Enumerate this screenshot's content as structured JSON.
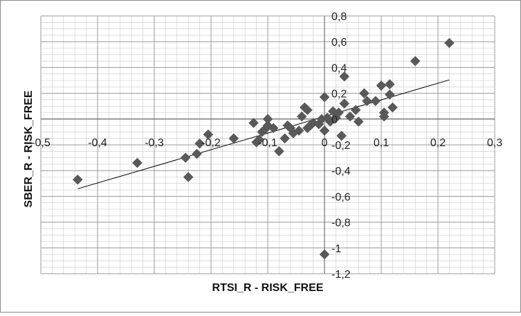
{
  "chart_data": {
    "type": "scatter",
    "title": "",
    "xlabel": "RTSI_R - RISK_FREE",
    "ylabel": "SBER_R - RISK_FREE",
    "xlim": [
      -0.5,
      0.3
    ],
    "ylim": [
      -1.2,
      0.8
    ],
    "x_ticks": [
      "-0,5",
      "-0,4",
      "-0,3",
      "-0,2",
      "-0,1",
      "0",
      "0,1",
      "0,2",
      "0,3"
    ],
    "y_ticks": [
      "0,8",
      "0,6",
      "0,4",
      "0,2",
      "0",
      "-0,2",
      "-0,4",
      "-0,6",
      "-0,8",
      "-1",
      "-1,2"
    ],
    "x_tick_values": [
      -0.5,
      -0.4,
      -0.3,
      -0.2,
      -0.1,
      0,
      0.1,
      0.2,
      0.3
    ],
    "y_tick_values": [
      0.8,
      0.6,
      0.4,
      0.2,
      0,
      -0.2,
      -0.4,
      -0.6,
      -0.8,
      -1,
      -1.2
    ],
    "grid": true,
    "legend": "none",
    "marker": "diamond",
    "marker_color": "#595959",
    "trendline": {
      "type": "linear",
      "slope": 1.29,
      "intercept": 0.02,
      "x_range": [
        -0.435,
        0.22
      ],
      "color": "#000000"
    },
    "points": [
      [
        -0.435,
        -0.47
      ],
      [
        -0.33,
        -0.34
      ],
      [
        -0.245,
        -0.3
      ],
      [
        -0.24,
        -0.45
      ],
      [
        -0.225,
        -0.27
      ],
      [
        -0.22,
        -0.19
      ],
      [
        -0.205,
        -0.12
      ],
      [
        -0.16,
        -0.15
      ],
      [
        -0.125,
        -0.03
      ],
      [
        -0.12,
        -0.18
      ],
      [
        -0.115,
        -0.16
      ],
      [
        -0.11,
        -0.1
      ],
      [
        -0.105,
        -0.08
      ],
      [
        -0.1,
        -0.05
      ],
      [
        -0.1,
        0.0
      ],
      [
        -0.09,
        -0.07
      ],
      [
        -0.08,
        -0.25
      ],
      [
        -0.07,
        -0.15
      ],
      [
        -0.065,
        -0.05
      ],
      [
        -0.06,
        -0.07
      ],
      [
        -0.055,
        -0.11
      ],
      [
        -0.045,
        -0.09
      ],
      [
        -0.04,
        0.02
      ],
      [
        -0.035,
        0.09
      ],
      [
        -0.03,
        0.07
      ],
      [
        -0.03,
        -0.07
      ],
      [
        -0.025,
        -0.05
      ],
      [
        -0.02,
        -0.03
      ],
      [
        -0.01,
        -0.04
      ],
      [
        -0.005,
        0.0
      ],
      [
        0.0,
        0.17
      ],
      [
        0.0,
        -0.09
      ],
      [
        0.005,
        0.01
      ],
      [
        0.01,
        -0.02
      ],
      [
        0.015,
        0.06
      ],
      [
        0.02,
        0.01
      ],
      [
        0.025,
        0.05
      ],
      [
        0.03,
        -0.13
      ],
      [
        0.035,
        0.12
      ],
      [
        0.035,
        0.33
      ],
      [
        0.045,
        0.02
      ],
      [
        0.055,
        0.07
      ],
      [
        0.06,
        -0.02
      ],
      [
        0.07,
        0.2
      ],
      [
        0.075,
        0.14
      ],
      [
        0.09,
        0.14
      ],
      [
        0.1,
        0.26
      ],
      [
        0.105,
        0.05
      ],
      [
        0.105,
        0.02
      ],
      [
        0.115,
        0.27
      ],
      [
        0.115,
        0.19
      ],
      [
        0.12,
        0.09
      ],
      [
        0.16,
        0.45
      ],
      [
        0.22,
        0.59
      ],
      [
        0.0,
        -1.05
      ]
    ]
  }
}
